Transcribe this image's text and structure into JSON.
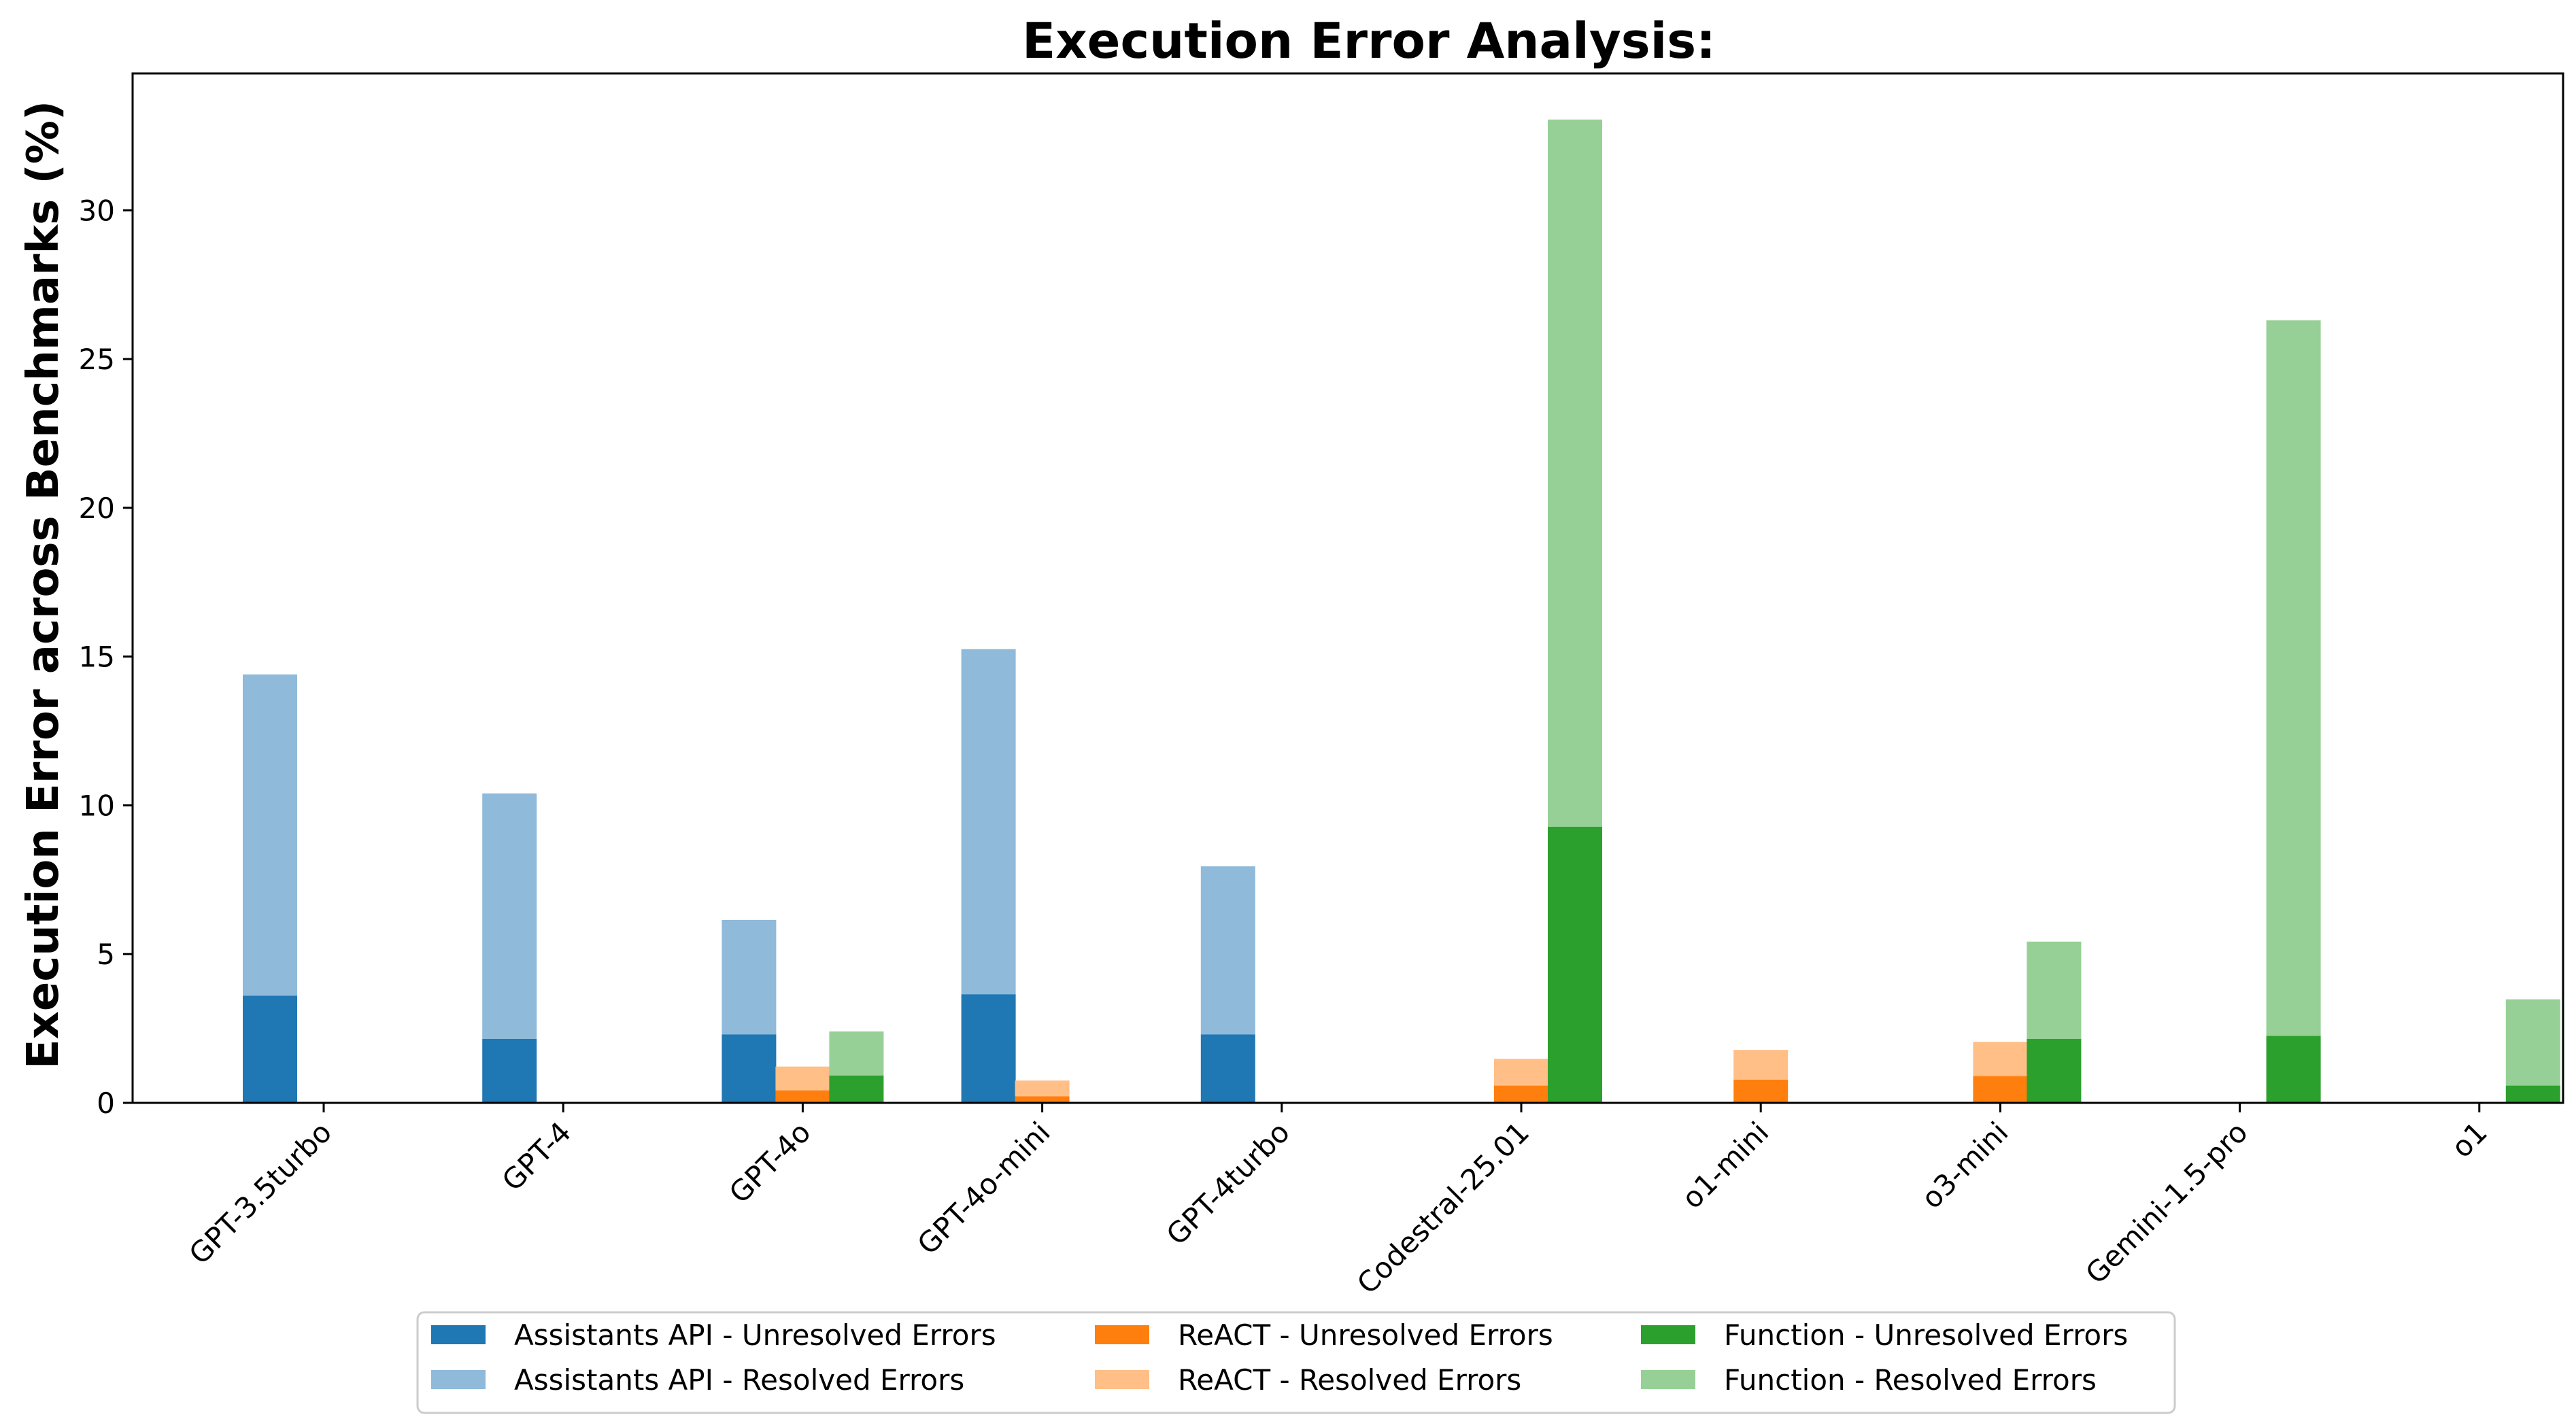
{
  "chart_data": {
    "type": "bar",
    "title": "Execution Error Analysis:",
    "xlabel": "",
    "ylabel": "Execution Error across Benchmarks (%)",
    "ylim": [
      0,
      34.6
    ],
    "yticks": [
      0,
      5,
      10,
      15,
      20,
      25,
      30
    ],
    "grid": false,
    "legend_placement": "bottom-center",
    "stacked": true,
    "categories": [
      "GPT-3.5turbo",
      "GPT-4",
      "GPT-4o",
      "GPT-4o-mini",
      "GPT-4turbo",
      "Codestral-25.01",
      "o1-mini",
      "o3-mini",
      "Gemini-1.5-pro",
      "o1"
    ],
    "groups": [
      {
        "name": "Assistants API",
        "unresolved_label": "Assistants API - Unresolved Errors",
        "resolved_label": "Assistants API - Resolved Errors",
        "unresolved_color": "#1f77b4",
        "resolved_color": "#8fbad9",
        "unresolved": [
          3.6,
          2.15,
          2.3,
          3.65,
          2.3,
          0,
          0,
          0,
          0,
          0
        ],
        "total": [
          14.4,
          10.4,
          6.15,
          15.25,
          7.95,
          0,
          0,
          0,
          0,
          0
        ]
      },
      {
        "name": "ReACT",
        "unresolved_label": "ReACT - Unresolved Errors",
        "resolved_label": "ReACT - Resolved Errors",
        "unresolved_color": "#ff7f0e",
        "resolved_color": "#ffbf87",
        "unresolved": [
          0,
          0,
          0.42,
          0.22,
          0,
          0.58,
          0.78,
          0.9,
          0,
          0
        ],
        "total": [
          0,
          0,
          1.22,
          0.75,
          0,
          1.48,
          1.78,
          2.05,
          0,
          0
        ]
      },
      {
        "name": "Function",
        "unresolved_label": "Function - Unresolved Errors",
        "resolved_label": "Function - Resolved Errors",
        "unresolved_color": "#2ca02c",
        "resolved_color": "#96d096",
        "unresolved": [
          0,
          0,
          0.92,
          0,
          0,
          9.28,
          0,
          2.15,
          2.25,
          0.58
        ],
        "total": [
          0,
          0,
          2.4,
          0,
          0,
          33.05,
          0,
          5.42,
          26.3,
          3.48
        ]
      }
    ]
  }
}
